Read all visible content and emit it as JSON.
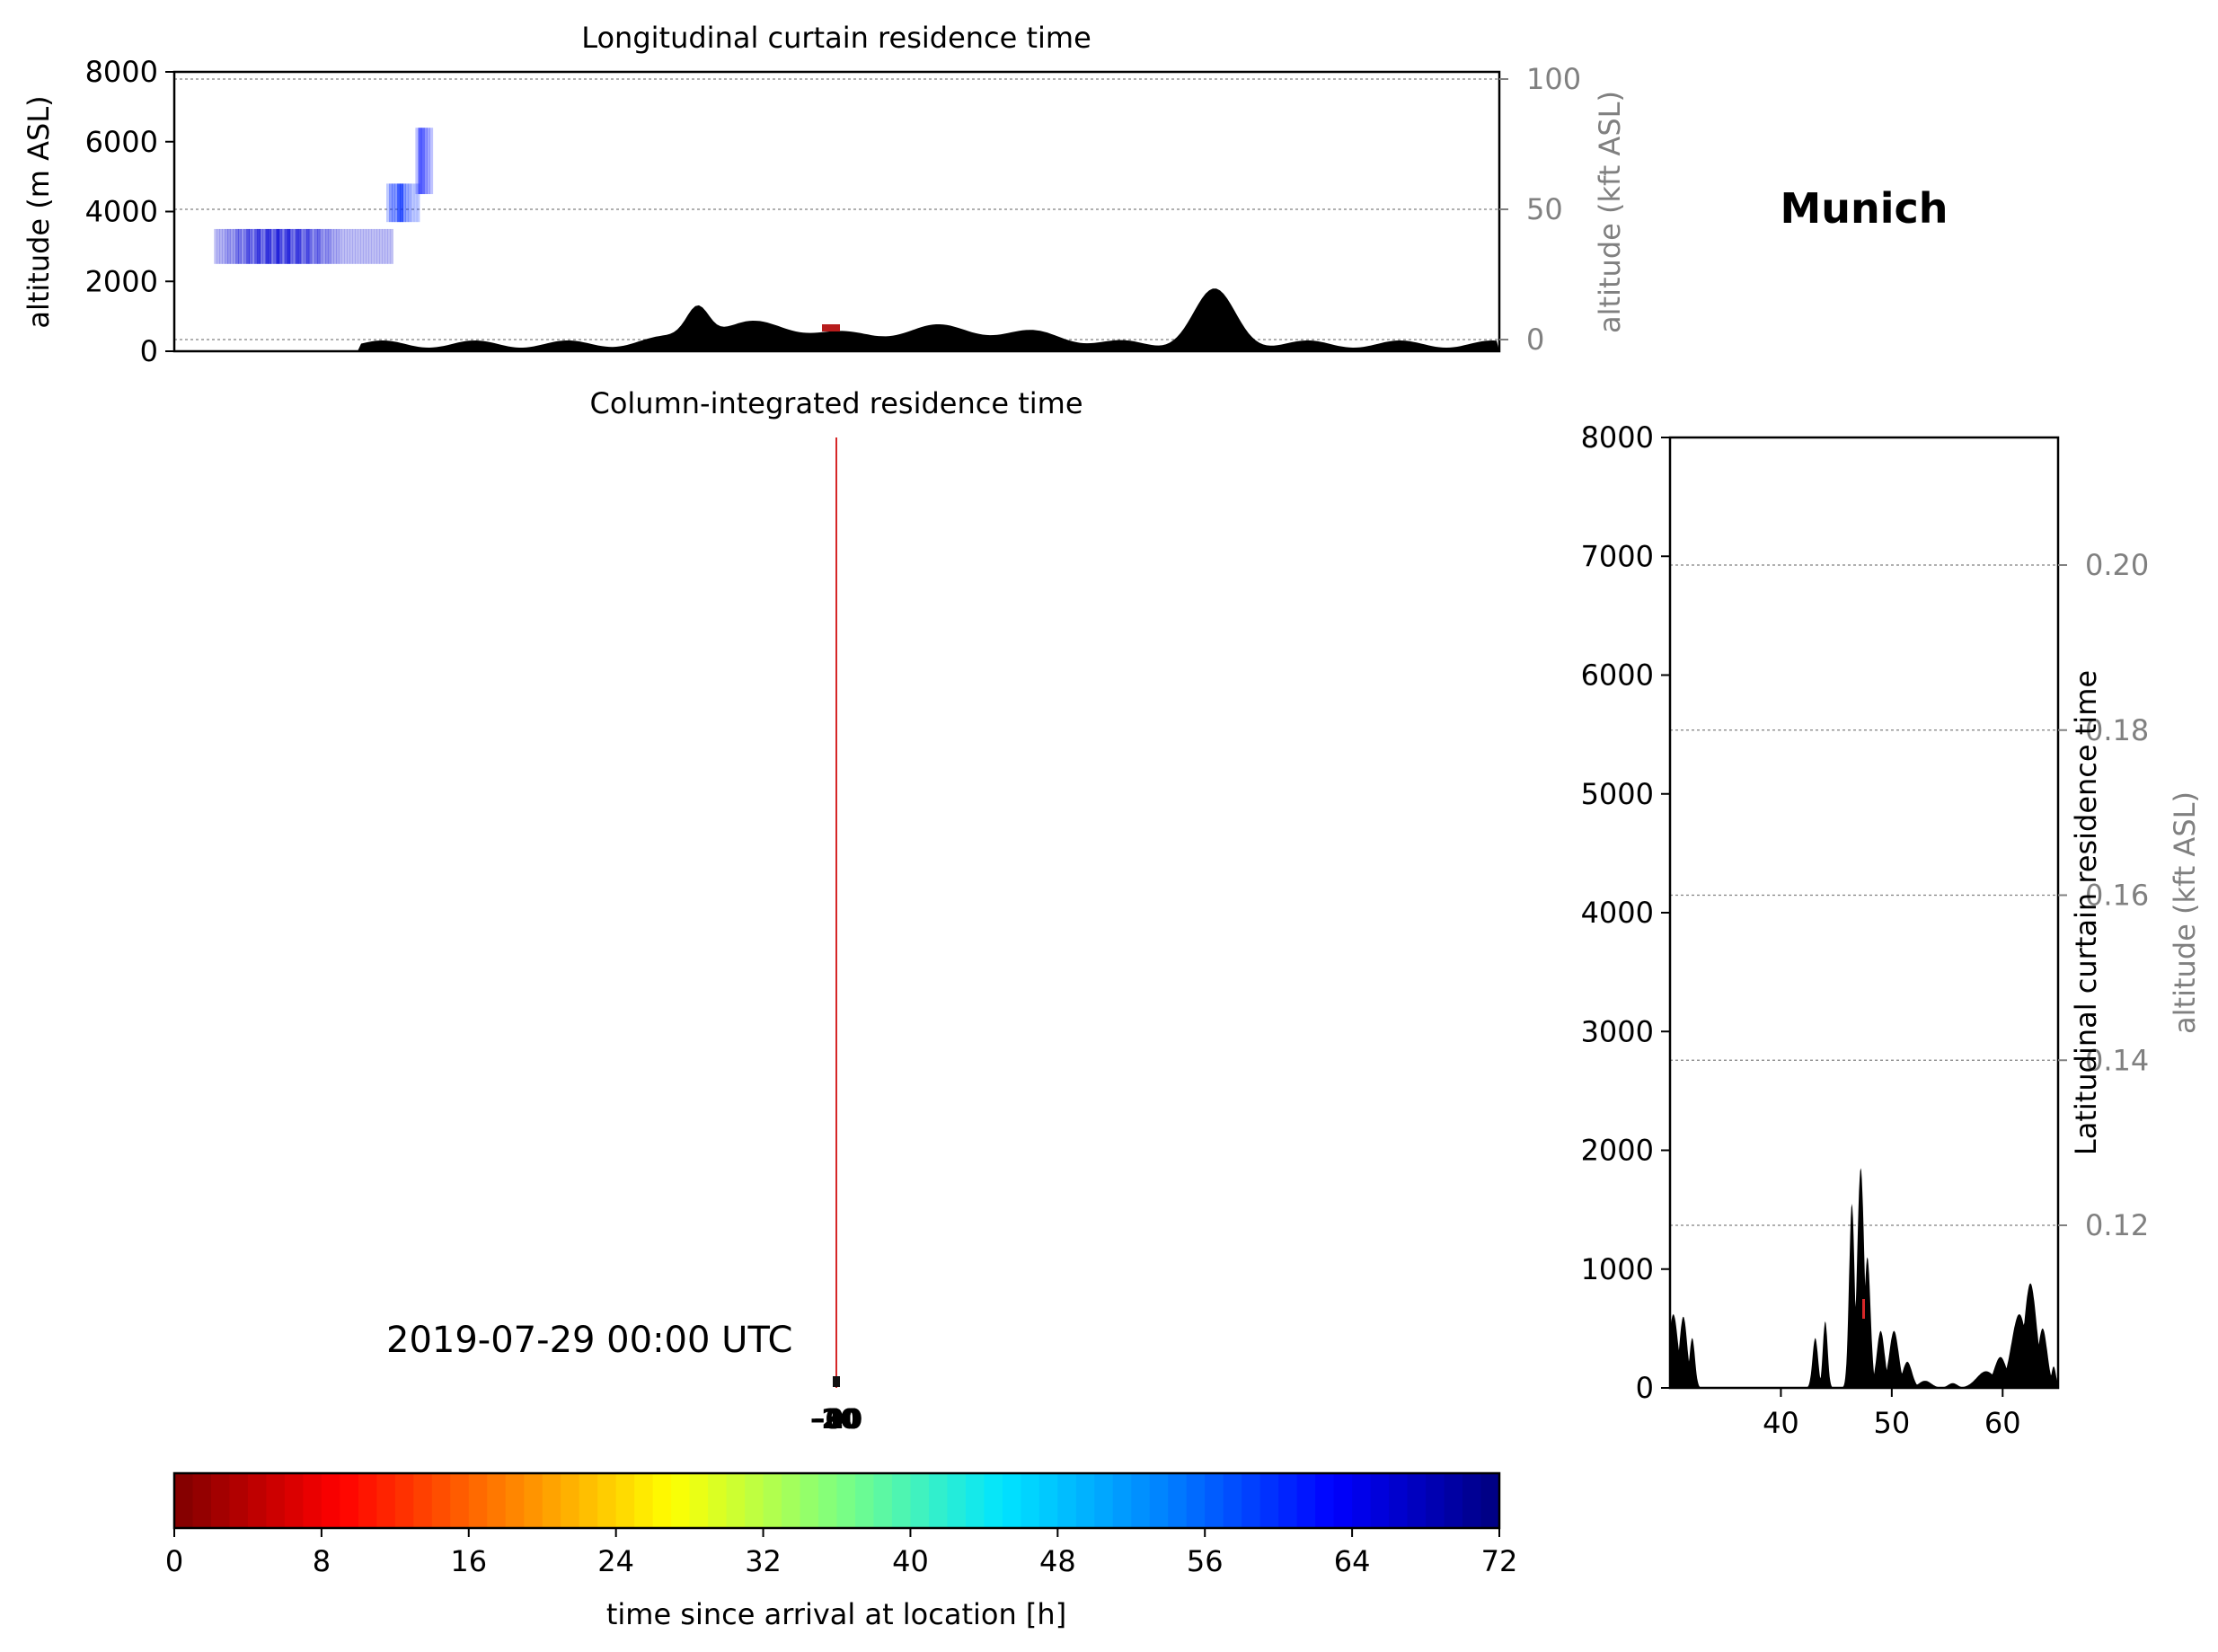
{
  "location": "Munich",
  "timestamp": "2019-07-29 00:00 UTC",
  "colors": {
    "terrain": "#000000",
    "grid": "#808080",
    "secondary_axis": "#808080",
    "marker_line": "#d62728",
    "colormap": [
      "#7f0000",
      "#ff0000",
      "#ff7f00",
      "#ffff00",
      "#7fff7f",
      "#00e5ff",
      "#007fff",
      "#0000ff",
      "#00007f"
    ]
  },
  "chart_data": [
    {
      "type": "heatmap",
      "name": "longitudinal-curtain",
      "title": "Longitudinal curtain residence time",
      "xlabel": "",
      "ylabel": "altitude (m ASL)",
      "ylim": [
        0,
        8000
      ],
      "yticks": [
        0,
        2000,
        4000,
        6000,
        8000
      ],
      "secondary_ylabel": "altitude (kft ASL)",
      "secondary_yticks": [
        0,
        50,
        100
      ],
      "grid": true,
      "residence_blocks": [
        {
          "x_start": 0.03,
          "x_end": 0.165,
          "alt_bottom": 2500,
          "alt_top": 3500,
          "hours": 66
        },
        {
          "x_start": 0.16,
          "x_end": 0.185,
          "alt_bottom": 3700,
          "alt_top": 4800,
          "hours": 60
        },
        {
          "x_start": 0.182,
          "x_end": 0.195,
          "alt_bottom": 4500,
          "alt_top": 6400,
          "hours": 62
        }
      ]
    },
    {
      "type": "heatmap",
      "name": "column-integrated",
      "title": "Column-integrated residence time",
      "point_labels": [
        "0",
        "-10",
        "-20",
        "-30"
      ]
    },
    {
      "type": "heatmap",
      "name": "latitudinal-curtain",
      "title": "",
      "ylabel": "Latitudinal curtain residence time",
      "ylim": [
        0,
        8000
      ],
      "yticks": [
        0,
        1000,
        2000,
        3000,
        4000,
        5000,
        6000,
        7000,
        8000
      ],
      "xlim": [
        30,
        65
      ],
      "xticks": [
        40,
        50,
        60
      ],
      "secondary_ylabel": "altitude (kft ASL)",
      "secondary_yticks": [
        0.12,
        0.14,
        0.16,
        0.18,
        0.2
      ],
      "grid": true
    },
    {
      "type": "colorbar",
      "name": "time-colorbar",
      "xlabel": "time since arrival at location [h]",
      "range": [
        0,
        72
      ],
      "ticks": [
        0,
        8,
        16,
        24,
        32,
        40,
        48,
        56,
        64,
        72
      ],
      "levels": 72
    }
  ]
}
